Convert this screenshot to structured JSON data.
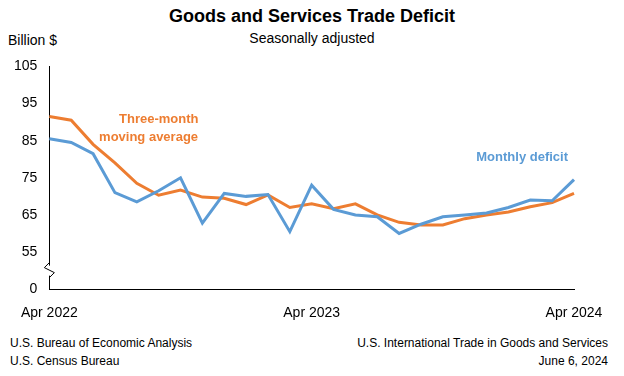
{
  "chart_data": {
    "type": "line",
    "title": "Goods and Services Trade Deficit",
    "subtitle": "Seasonally adjusted",
    "y_label": "Billion $",
    "categories": [
      "Apr 2022",
      null,
      null,
      null,
      null,
      null,
      null,
      null,
      null,
      null,
      null,
      null,
      "Apr 2023",
      null,
      null,
      null,
      null,
      null,
      null,
      null,
      null,
      null,
      null,
      null,
      "Apr 2024"
    ],
    "series": [
      {
        "name": "Monthly deficit",
        "color": "#5b9bd5",
        "values": [
          85.5,
          84.5,
          81.5,
          71,
          68.5,
          71.5,
          75,
          62.8,
          70.8,
          70,
          70.5,
          60.5,
          73,
          66.5,
          65,
          64.5,
          60,
          62.5,
          64.5,
          65,
          65.5,
          67,
          69,
          68.8,
          74.5
        ]
      },
      {
        "name": "Three-month moving average",
        "color": "#ed7d31",
        "values": [
          91.5,
          90.5,
          84,
          79,
          73.5,
          70.3,
          71.7,
          69.8,
          69.5,
          67.8,
          70.4,
          67,
          68,
          66.7,
          68,
          65,
          63,
          62.3,
          62.3,
          64,
          65,
          65.8,
          67.2,
          68.3,
          70.8
        ]
      }
    ],
    "ylim": [
      0,
      105
    ],
    "yticks": [
      0,
      55,
      65,
      75,
      85,
      95,
      105
    ],
    "grid": false,
    "footer": {
      "left": [
        "U.S. Bureau of Economic Analysis",
        "U.S. Census Bureau"
      ],
      "right": [
        "U.S. International Trade in Goods and Services",
        "June 6, 2024"
      ]
    }
  }
}
